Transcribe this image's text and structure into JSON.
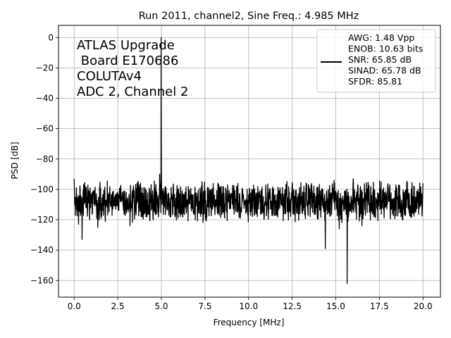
{
  "chart_data": {
    "type": "line",
    "title": "Run 2011, channel2, Sine Freq.: 4.985 MHz",
    "xlabel": "Frequency [MHz]",
    "ylabel": "PSD [dB]",
    "xlim": [
      -0.9,
      21.0
    ],
    "ylim": [
      -171,
      8
    ],
    "xticks": [
      0.0,
      2.5,
      5.0,
      7.5,
      10.0,
      12.5,
      15.0,
      17.5,
      20.0
    ],
    "xtick_labels": [
      "0.0",
      "2.5",
      "5.0",
      "7.5",
      "10.0",
      "12.5",
      "15.0",
      "17.5",
      "20.0"
    ],
    "yticks": [
      0,
      -20,
      -40,
      -60,
      -80,
      -100,
      -120,
      -140,
      -160
    ],
    "ytick_labels": [
      "0",
      "−20",
      "−40",
      "−60",
      "−80",
      "−100",
      "−120",
      "−140",
      "−160"
    ],
    "grid": true,
    "line_color": "#000000",
    "annotation_lines": [
      "ATLAS Upgrade",
      " Board E170686",
      "COLUTAv4",
      "ADC 2, Channel 2"
    ],
    "legend": {
      "placement": "top-right",
      "lines": [
        "AWG: 1.48 Vpp",
        "ENOB: 10.63 bits",
        "SNR: 65.85 dB",
        "SINAD: 65.78 dB",
        "SFDR: 85.81"
      ]
    },
    "series": [
      {
        "x_range": [
          0.0,
          20.0
        ],
        "noise_floor_db": -108,
        "noise_min_db": -122,
        "noise_max_db": -93,
        "points": [
          {
            "x": 4.985,
            "y": 0
          },
          {
            "x": 5.0,
            "y": -86
          },
          {
            "x": 4.9,
            "y": -90
          },
          {
            "x": 0.45,
            "y": -133
          },
          {
            "x": 0.25,
            "y": -123
          },
          {
            "x": 1.35,
            "y": -125
          },
          {
            "x": 3.2,
            "y": -124
          },
          {
            "x": 14.4,
            "y": -139
          },
          {
            "x": 14.9,
            "y": -94
          },
          {
            "x": 15.2,
            "y": -126
          },
          {
            "x": 15.35,
            "y": -122
          },
          {
            "x": 15.65,
            "y": -162
          },
          {
            "x": 16.0,
            "y": -93
          },
          {
            "x": 16.5,
            "y": -124
          },
          {
            "x": 20.0,
            "y": -96
          },
          {
            "x": 0.0,
            "y": -93
          }
        ]
      }
    ]
  }
}
